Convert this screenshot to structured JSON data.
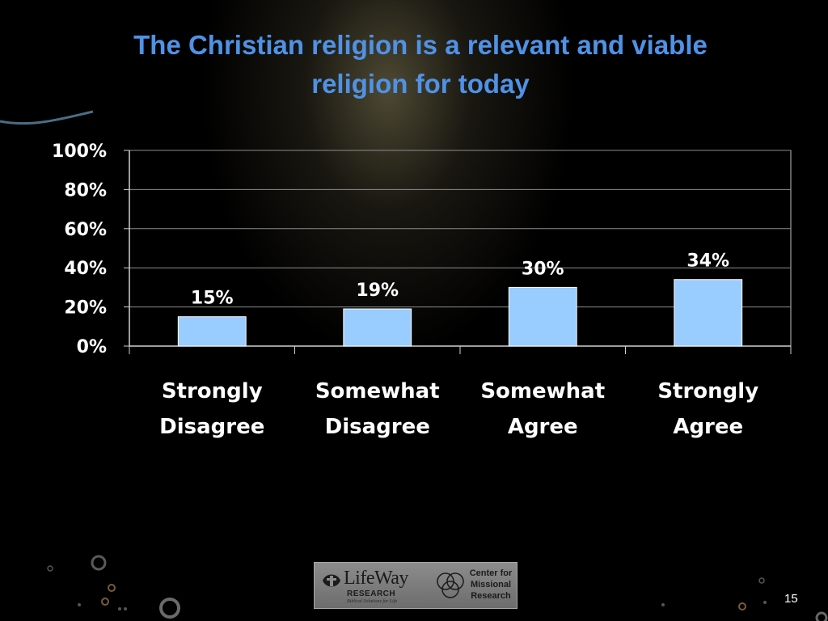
{
  "slide": {
    "title_lines": [
      "The Christian religion is a relevant and viable",
      "religion for today"
    ],
    "page_number": "15"
  },
  "logo": {
    "brand": "LifeWay",
    "sub": "RESEARCH",
    "tagline": "Biblical Solutions for Life",
    "partner_lines": [
      "Center for",
      "Missional",
      "Research"
    ]
  },
  "colors": {
    "title": "#4f92e6",
    "bar": "#99ccff",
    "background": "#000000"
  },
  "chart_data": {
    "type": "bar",
    "categories": [
      [
        "Strongly",
        "Disagree"
      ],
      [
        "Somewhat",
        "Disagree"
      ],
      [
        "Somewhat",
        "Agree"
      ],
      [
        "Strongly",
        "Agree"
      ]
    ],
    "values": [
      15,
      19,
      30,
      34
    ],
    "data_labels": [
      "15%",
      "19%",
      "30%",
      "34%"
    ],
    "yticks": [
      "0%",
      "20%",
      "40%",
      "60%",
      "80%",
      "100%"
    ],
    "ylim": [
      0,
      100
    ],
    "grid": true,
    "title": "The Christian religion is a relevant and viable religion for today",
    "xlabel": "",
    "ylabel": ""
  }
}
